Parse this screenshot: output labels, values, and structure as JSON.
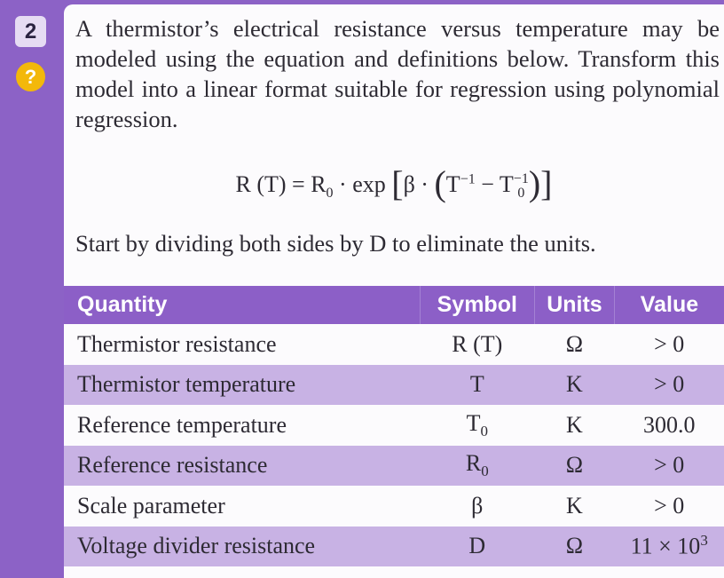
{
  "badge": {
    "number": "2",
    "hint": "?"
  },
  "question": {
    "text": "A thermistor’s electrical resistance versus temperature may be modeled using the equation and definitions below. Transform this model into a linear format suitable for regression using polynomial regression.",
    "equation": {
      "lhs": "R (T) = R",
      "lhs_sub": "0",
      "mid": "· exp",
      "open_bracket": "[",
      "beta": "β ·",
      "open_paren": "(",
      "t": "T",
      "t_sup": "−1",
      "minus": "− T",
      "t0_sub": "0",
      "t0_sup": "−1",
      "close_paren": ")",
      "close_bracket": "]"
    },
    "instruction": "Start by dividing both sides by D to eliminate the units."
  },
  "table": {
    "header": [
      "Quantity",
      "Symbol",
      "Units",
      "Value"
    ],
    "rows": [
      [
        "Thermistor resistance",
        {
          "base": "R (T)"
        },
        "Ω",
        {
          "base": "> 0"
        }
      ],
      [
        "Thermistor temperature",
        {
          "base": "T"
        },
        "K",
        {
          "base": "> 0"
        }
      ],
      [
        "Reference temperature",
        {
          "base": "T",
          "sub": "0"
        },
        "K",
        {
          "base": "300.0"
        }
      ],
      [
        "Reference resistance",
        {
          "base": "R",
          "sub": "0"
        },
        "Ω",
        {
          "base": "> 0"
        }
      ],
      [
        "Scale parameter",
        {
          "base": "β"
        },
        "K",
        {
          "base": "> 0"
        }
      ],
      [
        "Voltage divider resistance",
        {
          "base": "D"
        },
        "Ω",
        {
          "base": "11 × 10",
          "sup": "3"
        }
      ]
    ]
  }
}
